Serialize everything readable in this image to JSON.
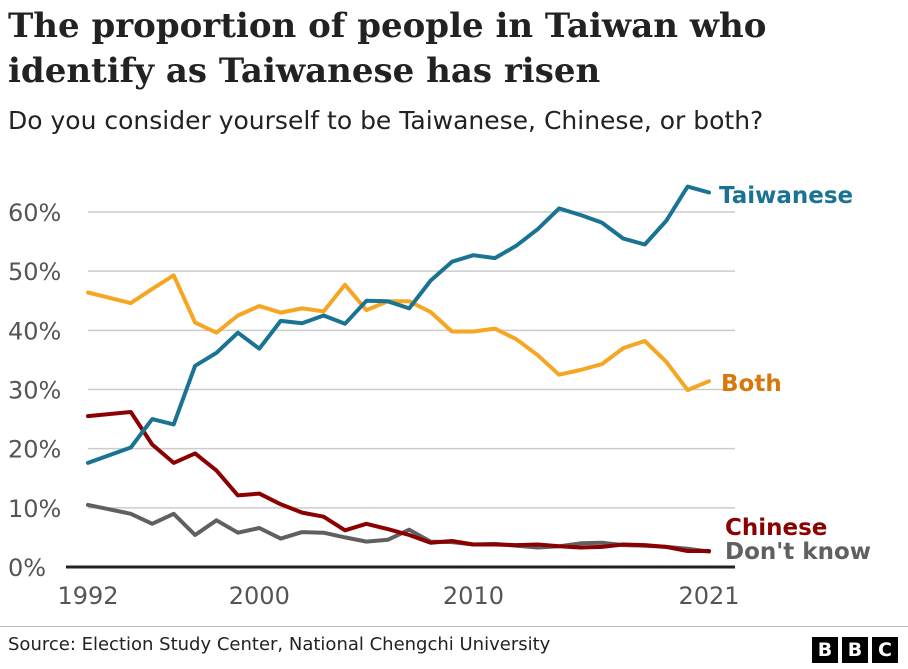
{
  "title": "The proportion of people in Taiwan who identify as Taiwanese has risen",
  "subtitle": "Do you consider yourself to be Taiwanese, Chinese, or both?",
  "source": "Source: Election Study Center, National Chengchi University",
  "logo": [
    "B",
    "B",
    "C"
  ],
  "chart_data": {
    "type": "line",
    "title": "The proportion of people in Taiwan who identify as Taiwanese has risen",
    "subtitle": "Do you consider yourself to be Taiwanese, Chinese, or both?",
    "xlabel": "",
    "ylabel": "",
    "xlim": [
      1992,
      2021
    ],
    "ylim": [
      0,
      60
    ],
    "grid": true,
    "legend": "direct labels at line ends",
    "x_ticks": [
      {
        "value": 1992,
        "label": "1992"
      },
      {
        "value": 2000,
        "label": "2000"
      },
      {
        "value": 2010,
        "label": "2010"
      },
      {
        "value": 2021,
        "label": "2021"
      }
    ],
    "y_ticks": [
      {
        "value": 0,
        "label": "0%"
      },
      {
        "value": 10,
        "label": "10%"
      },
      {
        "value": 20,
        "label": "20%"
      },
      {
        "value": 30,
        "label": "30%"
      },
      {
        "value": 40,
        "label": "40%"
      },
      {
        "value": 50,
        "label": "50%"
      },
      {
        "value": 60,
        "label": "60%"
      }
    ],
    "x": [
      1992,
      1994,
      1995,
      1996,
      1997,
      1998,
      1999,
      2000,
      2001,
      2002,
      2003,
      2004,
      2005,
      2006,
      2007,
      2008,
      2009,
      2010,
      2011,
      2012,
      2013,
      2014,
      2015,
      2016,
      2017,
      2018,
      2019,
      2020,
      2021
    ],
    "series": [
      {
        "name": "Taiwanese",
        "color": "#1a7392",
        "values": [
          17.6,
          20.2,
          25.0,
          24.1,
          34.0,
          36.2,
          39.6,
          36.9,
          41.6,
          41.2,
          42.5,
          41.1,
          45.0,
          44.9,
          43.7,
          48.4,
          51.6,
          52.7,
          52.2,
          54.3,
          57.1,
          60.6,
          59.5,
          58.2,
          55.5,
          54.5,
          58.5,
          64.3,
          63.3
        ]
      },
      {
        "name": "Both",
        "color": "#f5a623",
        "values": [
          46.4,
          44.6,
          47.0,
          49.3,
          41.3,
          39.6,
          42.5,
          44.1,
          43.0,
          43.7,
          43.2,
          47.7,
          43.4,
          44.9,
          44.9,
          43.1,
          39.8,
          39.8,
          40.3,
          38.5,
          35.8,
          32.5,
          33.3,
          34.3,
          37.0,
          38.2,
          34.7,
          29.9,
          31.4
        ]
      },
      {
        "name": "Chinese",
        "color": "#8b0000",
        "values": [
          25.5,
          26.2,
          20.7,
          17.6,
          19.2,
          16.3,
          12.1,
          12.4,
          10.6,
          9.2,
          8.5,
          6.2,
          7.3,
          6.4,
          5.4,
          4.1,
          4.4,
          3.8,
          3.8,
          3.7,
          3.8,
          3.5,
          3.3,
          3.4,
          3.8,
          3.7,
          3.4,
          2.7,
          2.7
        ]
      },
      {
        "name": "Don't know",
        "color": "#606060",
        "values": [
          10.5,
          9.0,
          7.3,
          9.0,
          5.4,
          7.9,
          5.8,
          6.6,
          4.8,
          5.9,
          5.8,
          5.0,
          4.3,
          4.6,
          6.3,
          4.3,
          4.2,
          3.8,
          3.9,
          3.6,
          3.3,
          3.5,
          4.0,
          4.1,
          3.7,
          3.6,
          3.4,
          3.1,
          2.6
        ]
      }
    ]
  }
}
